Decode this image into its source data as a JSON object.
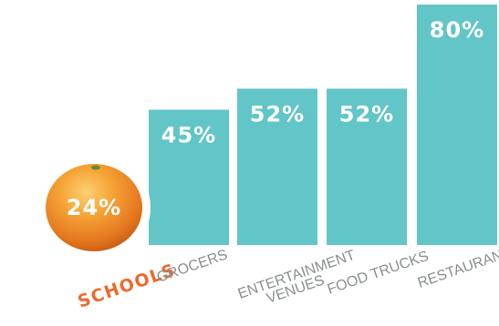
{
  "chart_data": {
    "type": "bar",
    "categories": [
      "SCHOOLS",
      "GROCERS",
      "ENTERTAINMENT VENUES",
      "FOOD TRUCKS",
      "RESTAURANTS"
    ],
    "category_lines": [
      [
        "SCHOOLS"
      ],
      [
        "GROCERS"
      ],
      [
        "ENTERTAINMENT",
        "VENUES"
      ],
      [
        "FOOD TRUCKS"
      ],
      [
        "RESTAURANTS"
      ]
    ],
    "values": [
      24,
      45,
      52,
      52,
      80
    ],
    "value_labels": [
      "24%",
      "45%",
      "52%",
      "52%",
      "80%"
    ],
    "highlight_category": "SCHOOLS",
    "highlight_marker": "orange",
    "ylim": [
      0,
      100
    ],
    "colors": {
      "bar": "#62c5c7",
      "highlight_label": "#ee6a2c",
      "orange_light": "#f9b14a",
      "orange_dark": "#e3721b",
      "category_label": "#8a8f92",
      "value_label": "#ffffff"
    }
  }
}
